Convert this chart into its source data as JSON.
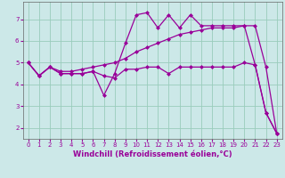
{
  "xlabel": "Windchill (Refroidissement éolien,°C)",
  "bg_color": "#cce8e8",
  "line_color": "#990099",
  "grid_color": "#99ccbb",
  "ylim": [
    1.5,
    7.8
  ],
  "xlim": [
    -0.5,
    23.5
  ],
  "yticks": [
    2,
    3,
    4,
    5,
    6,
    7
  ],
  "xticks": [
    0,
    1,
    2,
    3,
    4,
    5,
    6,
    7,
    8,
    9,
    10,
    11,
    12,
    13,
    14,
    15,
    16,
    17,
    18,
    19,
    20,
    21,
    22,
    23
  ],
  "xtick_labels": [
    "0",
    "1",
    "2",
    "3",
    "4",
    "5",
    "6",
    "7",
    "8",
    "9",
    "10",
    "11",
    "12",
    "13",
    "14",
    "15",
    "16",
    "17",
    "18",
    "19",
    "20",
    "21",
    "22",
    "23"
  ],
  "line1_x": [
    0,
    1,
    2,
    3,
    4,
    5,
    6,
    7,
    8,
    9,
    10,
    11,
    12,
    13,
    14,
    15,
    16,
    17,
    18,
    19,
    20,
    21,
    22,
    23
  ],
  "line1_y": [
    5.0,
    4.4,
    4.8,
    4.5,
    4.5,
    4.5,
    4.6,
    4.4,
    4.3,
    4.7,
    4.7,
    4.8,
    4.8,
    4.5,
    4.8,
    4.8,
    4.8,
    4.8,
    4.8,
    4.8,
    5.0,
    4.9,
    2.7,
    1.75
  ],
  "line2_x": [
    0,
    1,
    2,
    3,
    4,
    5,
    6,
    7,
    8,
    9,
    10,
    11,
    12,
    13,
    14,
    15,
    16,
    17,
    18,
    19,
    20,
    21,
    22,
    23
  ],
  "line2_y": [
    5.0,
    4.4,
    4.8,
    4.5,
    4.5,
    4.5,
    4.6,
    3.5,
    4.5,
    5.9,
    7.2,
    7.3,
    6.6,
    7.2,
    6.6,
    7.2,
    6.7,
    6.7,
    6.7,
    6.7,
    6.7,
    4.9,
    2.7,
    1.75
  ],
  "line3_x": [
    0,
    1,
    2,
    3,
    4,
    5,
    6,
    7,
    8,
    9,
    10,
    11,
    12,
    13,
    14,
    15,
    16,
    17,
    18,
    19,
    20,
    21,
    22,
    23
  ],
  "line3_y": [
    5.0,
    4.4,
    4.8,
    4.6,
    4.6,
    4.7,
    4.8,
    4.9,
    5.0,
    5.2,
    5.5,
    5.7,
    5.9,
    6.1,
    6.3,
    6.4,
    6.5,
    6.6,
    6.6,
    6.6,
    6.7,
    6.7,
    4.8,
    1.75
  ],
  "marker": "D",
  "markersize": 2.0,
  "linewidth": 0.9,
  "tick_fontsize": 5.0,
  "xlabel_fontsize": 6.0,
  "xlabel_color": "#990099",
  "tick_color": "#990099",
  "spine_color": "#666666"
}
